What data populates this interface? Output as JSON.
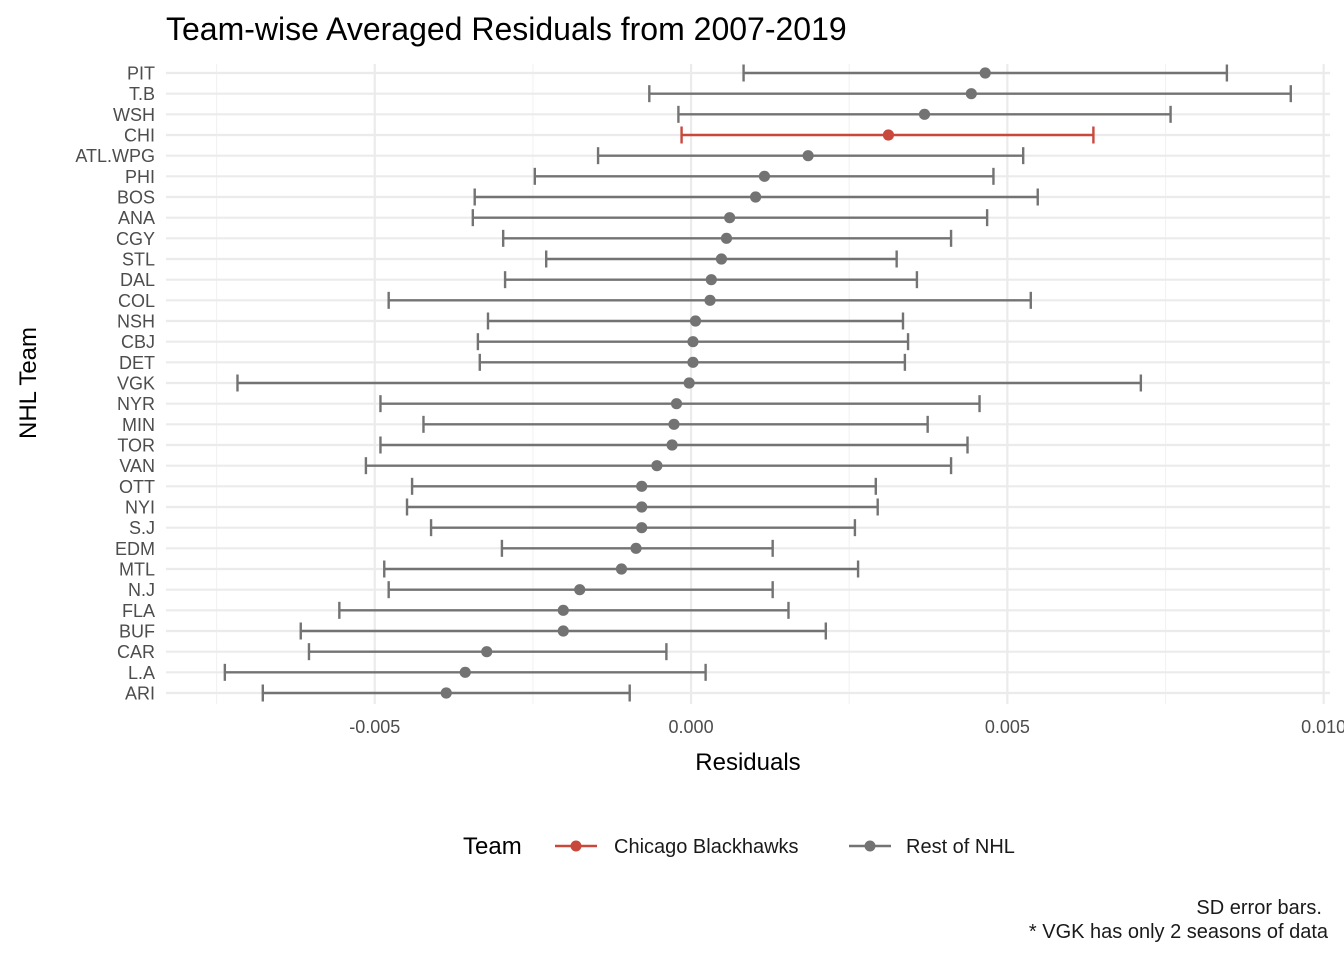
{
  "chart_data": {
    "type": "scatter",
    "title": "Team-wise Averaged Residuals from 2007-2019",
    "xlabel": "Residuals",
    "ylabel": "NHL Team",
    "xlim": [
      -0.0083,
      0.0101
    ],
    "x_ticks": [
      -0.005,
      0.0,
      0.005,
      0.01
    ],
    "x_tick_labels": [
      "-0.005",
      "0.000",
      "0.005",
      "0.010"
    ],
    "grid": true,
    "legend": {
      "title": "Team",
      "position": "bottom",
      "entries": [
        {
          "label": "Chicago Blackhawks",
          "color": "#c9483c"
        },
        {
          "label": "Rest of NHL",
          "color": "#737373"
        }
      ]
    },
    "caption": [
      "SD error bars.",
      "* VGK has only 2 seasons of data"
    ],
    "points": [
      {
        "team": "PIT",
        "mean": 0.00465,
        "lower": 0.00083,
        "upper": 0.00847,
        "group": "Rest of NHL"
      },
      {
        "team": "T.B",
        "mean": 0.00443,
        "lower": -0.00066,
        "upper": 0.00948,
        "group": "Rest of NHL"
      },
      {
        "team": "WSH",
        "mean": 0.00369,
        "lower": -0.0002,
        "upper": 0.00758,
        "group": "Rest of NHL"
      },
      {
        "team": "CHI",
        "mean": 0.00312,
        "lower": -0.00015,
        "upper": 0.00636,
        "group": "Chicago Blackhawks"
      },
      {
        "team": "ATL.WPG",
        "mean": 0.00185,
        "lower": -0.00147,
        "upper": 0.00525,
        "group": "Rest of NHL"
      },
      {
        "team": "PHI",
        "mean": 0.00116,
        "lower": -0.00247,
        "upper": 0.00478,
        "group": "Rest of NHL"
      },
      {
        "team": "BOS",
        "mean": 0.00102,
        "lower": -0.00342,
        "upper": 0.00548,
        "group": "Rest of NHL"
      },
      {
        "team": "ANA",
        "mean": 0.00061,
        "lower": -0.00345,
        "upper": 0.00468,
        "group": "Rest of NHL"
      },
      {
        "team": "CGY",
        "mean": 0.00056,
        "lower": -0.00297,
        "upper": 0.00411,
        "group": "Rest of NHL"
      },
      {
        "team": "STL",
        "mean": 0.00048,
        "lower": -0.00229,
        "upper": 0.00325,
        "group": "Rest of NHL"
      },
      {
        "team": "DAL",
        "mean": 0.00032,
        "lower": -0.00294,
        "upper": 0.00357,
        "group": "Rest of NHL"
      },
      {
        "team": "COL",
        "mean": 0.0003,
        "lower": -0.00478,
        "upper": 0.00537,
        "group": "Rest of NHL"
      },
      {
        "team": "NSH",
        "mean": 7e-05,
        "lower": -0.00321,
        "upper": 0.00335,
        "group": "Rest of NHL"
      },
      {
        "team": "CBJ",
        "mean": 3e-05,
        "lower": -0.00337,
        "upper": 0.00343,
        "group": "Rest of NHL"
      },
      {
        "team": "DET",
        "mean": 3e-05,
        "lower": -0.00334,
        "upper": 0.00338,
        "group": "Rest of NHL"
      },
      {
        "team": "VGK",
        "mean": -3e-05,
        "lower": -0.00717,
        "upper": 0.00711,
        "group": "Rest of NHL"
      },
      {
        "team": "NYR",
        "mean": -0.00023,
        "lower": -0.00491,
        "upper": 0.00456,
        "group": "Rest of NHL"
      },
      {
        "team": "MIN",
        "mean": -0.00027,
        "lower": -0.00423,
        "upper": 0.00374,
        "group": "Rest of NHL"
      },
      {
        "team": "TOR",
        "mean": -0.0003,
        "lower": -0.00491,
        "upper": 0.00437,
        "group": "Rest of NHL"
      },
      {
        "team": "VAN",
        "mean": -0.00054,
        "lower": -0.00514,
        "upper": 0.00411,
        "group": "Rest of NHL"
      },
      {
        "team": "OTT",
        "mean": -0.00078,
        "lower": -0.00441,
        "upper": 0.00292,
        "group": "Rest of NHL"
      },
      {
        "team": "NYI",
        "mean": -0.00078,
        "lower": -0.00449,
        "upper": 0.00295,
        "group": "Rest of NHL"
      },
      {
        "team": "S.J",
        "mean": -0.00078,
        "lower": -0.00411,
        "upper": 0.00259,
        "group": "Rest of NHL"
      },
      {
        "team": "EDM",
        "mean": -0.00087,
        "lower": -0.00299,
        "upper": 0.00129,
        "group": "Rest of NHL"
      },
      {
        "team": "MTL",
        "mean": -0.0011,
        "lower": -0.00485,
        "upper": 0.00264,
        "group": "Rest of NHL"
      },
      {
        "team": "N.J",
        "mean": -0.00176,
        "lower": -0.00478,
        "upper": 0.00129,
        "group": "Rest of NHL"
      },
      {
        "team": "FLA",
        "mean": -0.00202,
        "lower": -0.00556,
        "upper": 0.00154,
        "group": "Rest of NHL"
      },
      {
        "team": "BUF",
        "mean": -0.00202,
        "lower": -0.00617,
        "upper": 0.00213,
        "group": "Rest of NHL"
      },
      {
        "team": "CAR",
        "mean": -0.00323,
        "lower": -0.00604,
        "upper": -0.00039,
        "group": "Rest of NHL"
      },
      {
        "team": "L.A",
        "mean": -0.00357,
        "lower": -0.00737,
        "upper": 0.00023,
        "group": "Rest of NHL"
      },
      {
        "team": "ARI",
        "mean": -0.00387,
        "lower": -0.00677,
        "upper": -0.00097,
        "group": "Rest of NHL"
      }
    ]
  }
}
